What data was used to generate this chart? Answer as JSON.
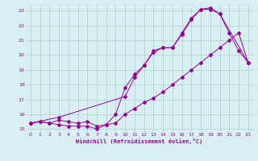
{
  "background_color": "#d8eff4",
  "grid_color": "#b0d0d0",
  "line_color": "#990099",
  "xlabel": "Windchill (Refroidissement éolien,°C)",
  "xlim": [
    -0.5,
    23.5
  ],
  "ylim": [
    14.8,
    23.4
  ],
  "yticks": [
    15,
    16,
    17,
    18,
    19,
    20,
    21,
    22,
    23
  ],
  "xticks": [
    0,
    1,
    2,
    3,
    4,
    5,
    6,
    7,
    8,
    9,
    10,
    11,
    12,
    13,
    14,
    15,
    16,
    17,
    18,
    19,
    20,
    21,
    22,
    23
  ],
  "line1_x": [
    0,
    1,
    2,
    3,
    4,
    5,
    6,
    7,
    8,
    9,
    10,
    11,
    12,
    13,
    14,
    15,
    16,
    17,
    18,
    19,
    20,
    21,
    22,
    23
  ],
  "line1_y": [
    15.4,
    15.5,
    15.4,
    15.3,
    15.2,
    15.2,
    15.2,
    15.0,
    15.3,
    15.4,
    16.0,
    16.4,
    16.8,
    17.1,
    17.5,
    18.0,
    18.5,
    19.0,
    19.5,
    20.0,
    20.5,
    21.0,
    21.5,
    19.5
  ],
  "line2_x": [
    0,
    1,
    2,
    3,
    4,
    5,
    6,
    7,
    8,
    9,
    10,
    11,
    12,
    13,
    14,
    15,
    16,
    17,
    18,
    19,
    20,
    21,
    22,
    23
  ],
  "line2_y": [
    15.4,
    15.5,
    15.4,
    15.6,
    15.5,
    15.4,
    15.5,
    15.2,
    15.3,
    16.0,
    17.8,
    18.7,
    19.3,
    20.3,
    20.5,
    20.5,
    21.5,
    22.5,
    23.1,
    23.1,
    22.8,
    21.5,
    20.3,
    19.5
  ],
  "line3_x": [
    0,
    3,
    10,
    11,
    12,
    13,
    14,
    15,
    16,
    17,
    18,
    19,
    20,
    23
  ],
  "line3_y": [
    15.4,
    15.8,
    17.2,
    18.5,
    19.3,
    20.2,
    20.5,
    20.5,
    21.4,
    22.4,
    23.1,
    23.2,
    22.8,
    19.5
  ]
}
